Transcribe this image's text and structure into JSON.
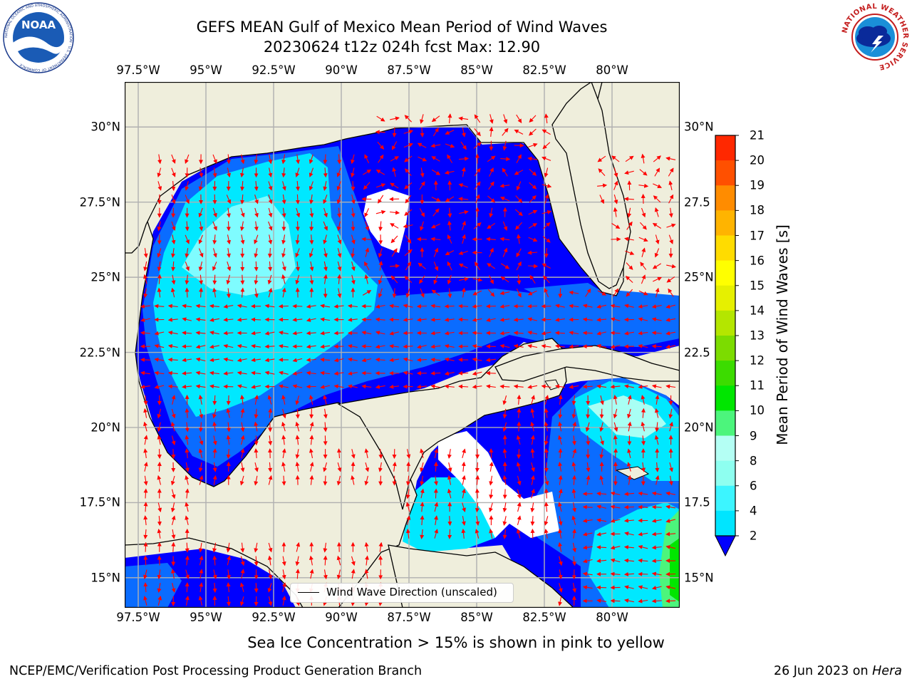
{
  "title": {
    "line1": "GEFS MEAN Gulf of Mexico Mean Period of Wind Waves",
    "line2": "20230624 t12z 024h fcst   Max: 12.90"
  },
  "logos": {
    "left": "NOAA",
    "left_ring_text": "NATIONAL OCEANIC AND ATMOSPHERIC ADMINISTRATION · U.S. DEPARTMENT OF COMMERCE",
    "right_ring_text": "NATIONAL WEATHER SERVICE"
  },
  "map": {
    "lon_range": [
      -98.0,
      -77.5
    ],
    "lat_range": [
      14.0,
      31.5
    ],
    "lon_labels": [
      "97.5°W",
      "95°W",
      "92.5°W",
      "90°W",
      "87.5°W",
      "85°W",
      "82.5°W",
      "80°W"
    ],
    "lon_values": [
      -97.5,
      -95.0,
      -92.5,
      -90.0,
      -87.5,
      -85.0,
      -82.5,
      -80.0
    ],
    "lat_labels_left": [
      "30°N",
      "27.5°N",
      "25°N",
      "22.5°N",
      "20°N",
      "17.5°N",
      "15°N"
    ],
    "lat_labels_right": [
      "30°N",
      "27.5",
      "25°N",
      "22.5",
      "20°N",
      "17.5",
      "15°N"
    ],
    "lat_values": [
      30.0,
      27.5,
      25.0,
      22.5,
      20.0,
      17.5,
      15.0
    ],
    "legend_text": "Wind Wave Direction (unscaled)",
    "colors": {
      "land": "#efeedc",
      "ocean_low": "#0000ff",
      "ocean_2_4": "#0a6cff",
      "ocean_4_6": "#00e8ff",
      "ocean_6_8": "#3cf6ff",
      "ocean_8_9": "#a8fff4",
      "arrow": "#ff0000",
      "grid": "#b0b0b0"
    }
  },
  "colorbar": {
    "label": "Mean Period of Wind Waves [s]",
    "ticks": [
      "2",
      "4",
      "6",
      "8",
      "9",
      "10",
      "11",
      "12",
      "13",
      "14",
      "15",
      "16",
      "17",
      "18",
      "19",
      "20",
      "21"
    ],
    "colors": [
      "#0066ff",
      "#00e5ff",
      "#3cf5ff",
      "#8efff0",
      "#b4fff4",
      "#4cf57c",
      "#00e600",
      "#3cdc00",
      "#7cdc00",
      "#b4e600",
      "#e6f000",
      "#ffff00",
      "#ffdc00",
      "#ffb400",
      "#ff8c00",
      "#ff5000",
      "#ff2800",
      "#ff0000"
    ]
  },
  "footer": {
    "note": "Sea Ice Concentration > 15% is shown in pink to yellow",
    "credit": "NCEP/EMC/Verification Post Processing Product Generation Branch",
    "date": "26 Jun 2023 on ",
    "host": "Hera"
  }
}
